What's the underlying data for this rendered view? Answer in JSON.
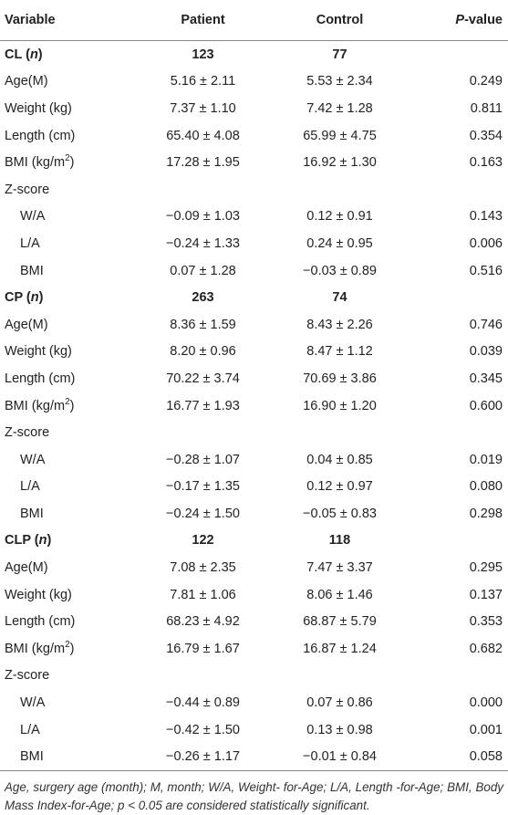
{
  "header": {
    "variable": "Variable",
    "patient": "Patient",
    "control": "Control",
    "p_value": [
      "P",
      "-value"
    ]
  },
  "groups": [
    {
      "label": [
        "CL (",
        "n",
        ")"
      ],
      "patient": "123",
      "control": "77",
      "measures": [
        {
          "label": "Age(M)",
          "patient": "5.16 ± 2.11",
          "control": "5.53 ± 2.34",
          "p_value": "0.249"
        },
        {
          "label": "Weight (kg)",
          "patient": "7.37 ± 1.10",
          "control": "7.42 ± 1.28",
          "p_value": "0.811"
        },
        {
          "label": "Length (cm)",
          "patient": "65.40 ± 4.08",
          "control": "65.99 ± 4.75",
          "p_value": "0.354"
        },
        {
          "label": [
            "BMI (kg/m",
            "2",
            ")"
          ],
          "patient": "17.28 ± 1.95",
          "control": "16.92 ± 1.30",
          "p_value": "0.163"
        }
      ],
      "z_score": {
        "label": "Z-score",
        "rows": [
          {
            "label": "W/A",
            "patient": "−0.09 ± 1.03",
            "control": "0.12 ± 0.91",
            "p_value": "0.143"
          },
          {
            "label": "L/A",
            "patient": "−0.24 ± 1.33",
            "control": "0.24 ± 0.95",
            "p_value": "0.006"
          },
          {
            "label": "BMI",
            "patient": "0.07 ± 1.28",
            "control": "−0.03 ± 0.89",
            "p_value": "0.516"
          }
        ]
      }
    },
    {
      "label": [
        "CP (",
        "n",
        ")"
      ],
      "patient": "263",
      "control": "74",
      "measures": [
        {
          "label": "Age(M)",
          "patient": "8.36 ± 1.59",
          "control": "8.43 ± 2.26",
          "p_value": "0.746"
        },
        {
          "label": "Weight (kg)",
          "patient": "8.20 ± 0.96",
          "control": "8.47 ± 1.12",
          "p_value": "0.039"
        },
        {
          "label": "Length (cm)",
          "patient": "70.22 ± 3.74",
          "control": "70.69 ± 3.86",
          "p_value": "0.345"
        },
        {
          "label": [
            "BMI (kg/m",
            "2",
            ")"
          ],
          "patient": "16.77 ± 1.93",
          "control": "16.90 ± 1.20",
          "p_value": "0.600"
        }
      ],
      "z_score": {
        "label": "Z-score",
        "rows": [
          {
            "label": "W/A",
            "patient": "−0.28 ± 1.07",
            "control": "0.04 ± 0.85",
            "p_value": "0.019"
          },
          {
            "label": "L/A",
            "patient": "−0.17 ± 1.35",
            "control": "0.12 ± 0.97",
            "p_value": "0.080"
          },
          {
            "label": "BMI",
            "patient": "−0.24 ± 1.50",
            "control": "−0.05 ± 0.83",
            "p_value": "0.298"
          }
        ]
      }
    },
    {
      "label": [
        "CLP (",
        "n",
        ")"
      ],
      "patient": "122",
      "control": "118",
      "measures": [
        {
          "label": "Age(M)",
          "patient": "7.08 ± 2.35",
          "control": "7.47 ± 3.37",
          "p_value": "0.295"
        },
        {
          "label": "Weight (kg)",
          "patient": "7.81 ± 1.06",
          "control": "8.06 ± 1.46",
          "p_value": "0.137"
        },
        {
          "label": "Length (cm)",
          "patient": "68.23 ± 4.92",
          "control": "68.87 ± 5.79",
          "p_value": "0.353"
        },
        {
          "label": [
            "BMI (kg/m",
            "2",
            ")"
          ],
          "patient": "16.79 ± 1.67",
          "control": "16.87 ± 1.24",
          "p_value": "0.682"
        }
      ],
      "z_score": {
        "label": "Z-score",
        "rows": [
          {
            "label": "W/A",
            "patient": "−0.44 ± 0.89",
            "control": "0.07 ± 0.86",
            "p_value": "0.000"
          },
          {
            "label": "L/A",
            "patient": "−0.42 ± 1.50",
            "control": "0.13 ± 0.98",
            "p_value": "0.001"
          },
          {
            "label": "BMI",
            "patient": "−0.26 ± 1.17",
            "control": "−0.01 ± 0.84",
            "p_value": "0.058"
          }
        ]
      }
    }
  ],
  "footnote": "Age, surgery age (month); M, month; W/A, Weight- for-Age; L/A, Length -for-Age; BMI, Body Mass Index-for-Age; p < 0.05 are considered statistically significant."
}
